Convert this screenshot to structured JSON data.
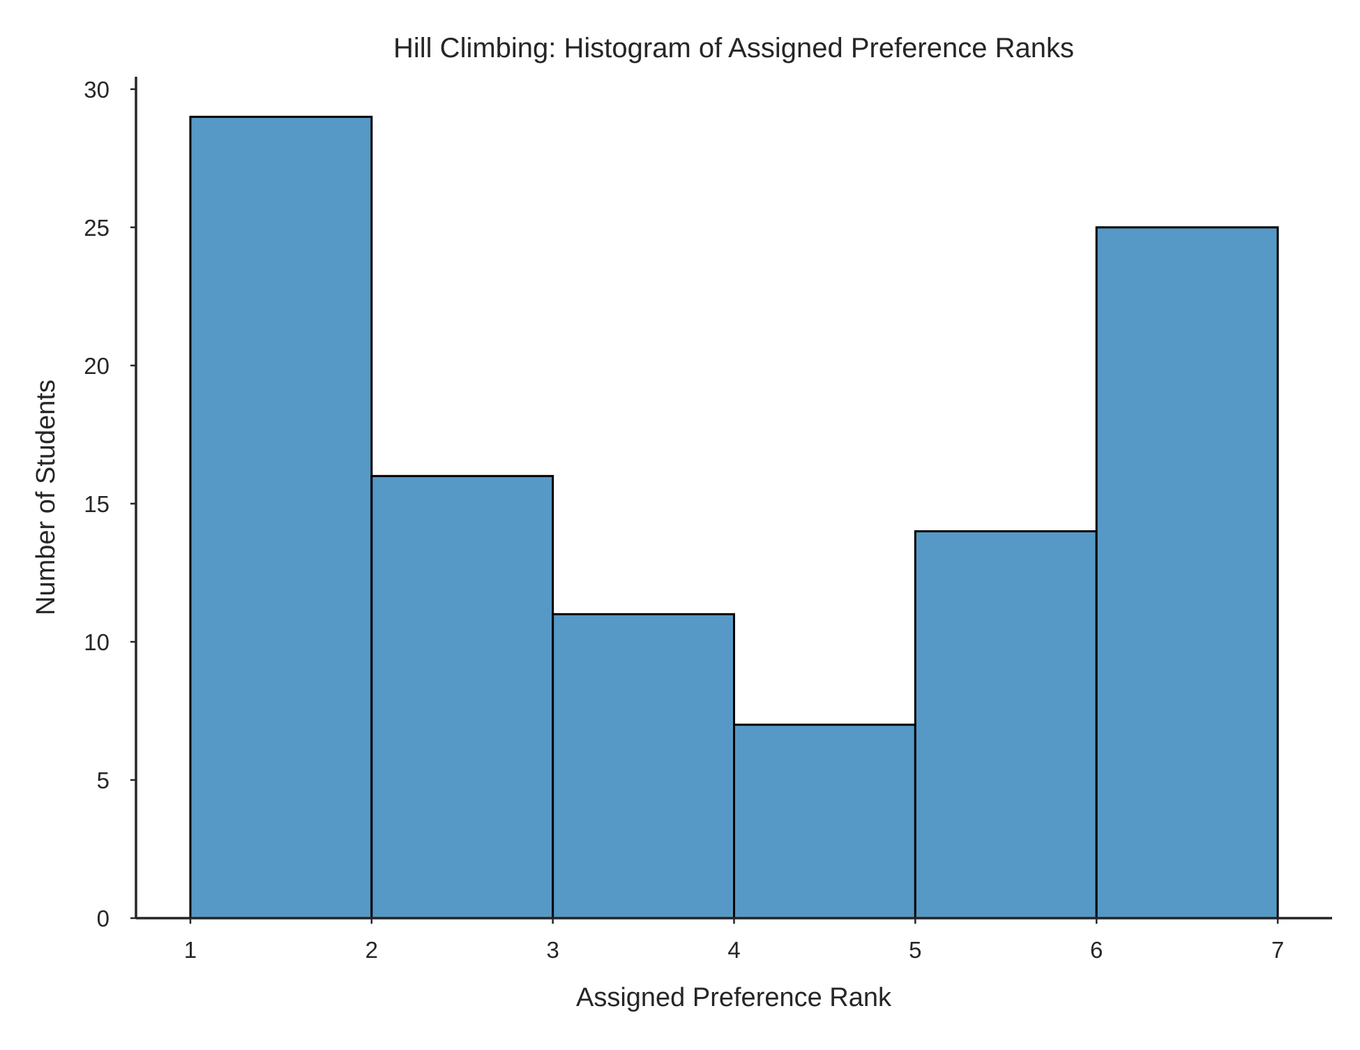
{
  "chart_data": {
    "type": "bar",
    "title": "Hill Climbing: Histogram of Assigned Preference Ranks",
    "xlabel": "Assigned Preference Rank",
    "ylabel": "Number of Students",
    "bins": [
      {
        "start": 1,
        "end": 2,
        "count": 29
      },
      {
        "start": 2,
        "end": 3,
        "count": 16
      },
      {
        "start": 3,
        "end": 4,
        "count": 11
      },
      {
        "start": 4,
        "end": 5,
        "count": 7
      },
      {
        "start": 5,
        "end": 6,
        "count": 14
      },
      {
        "start": 6,
        "end": 7,
        "count": 25
      }
    ],
    "xticks": [
      1,
      2,
      3,
      4,
      5,
      6,
      7
    ],
    "yticks": [
      0,
      5,
      10,
      15,
      20,
      25,
      30
    ],
    "xlim": [
      0.7,
      7.3
    ],
    "ylim": [
      0,
      30.45
    ],
    "grid": false,
    "legend": "none",
    "colors": {
      "bar_fill": "#5699c6",
      "bar_edge": "#000000",
      "axis": "#262626",
      "text": "#262626"
    }
  }
}
